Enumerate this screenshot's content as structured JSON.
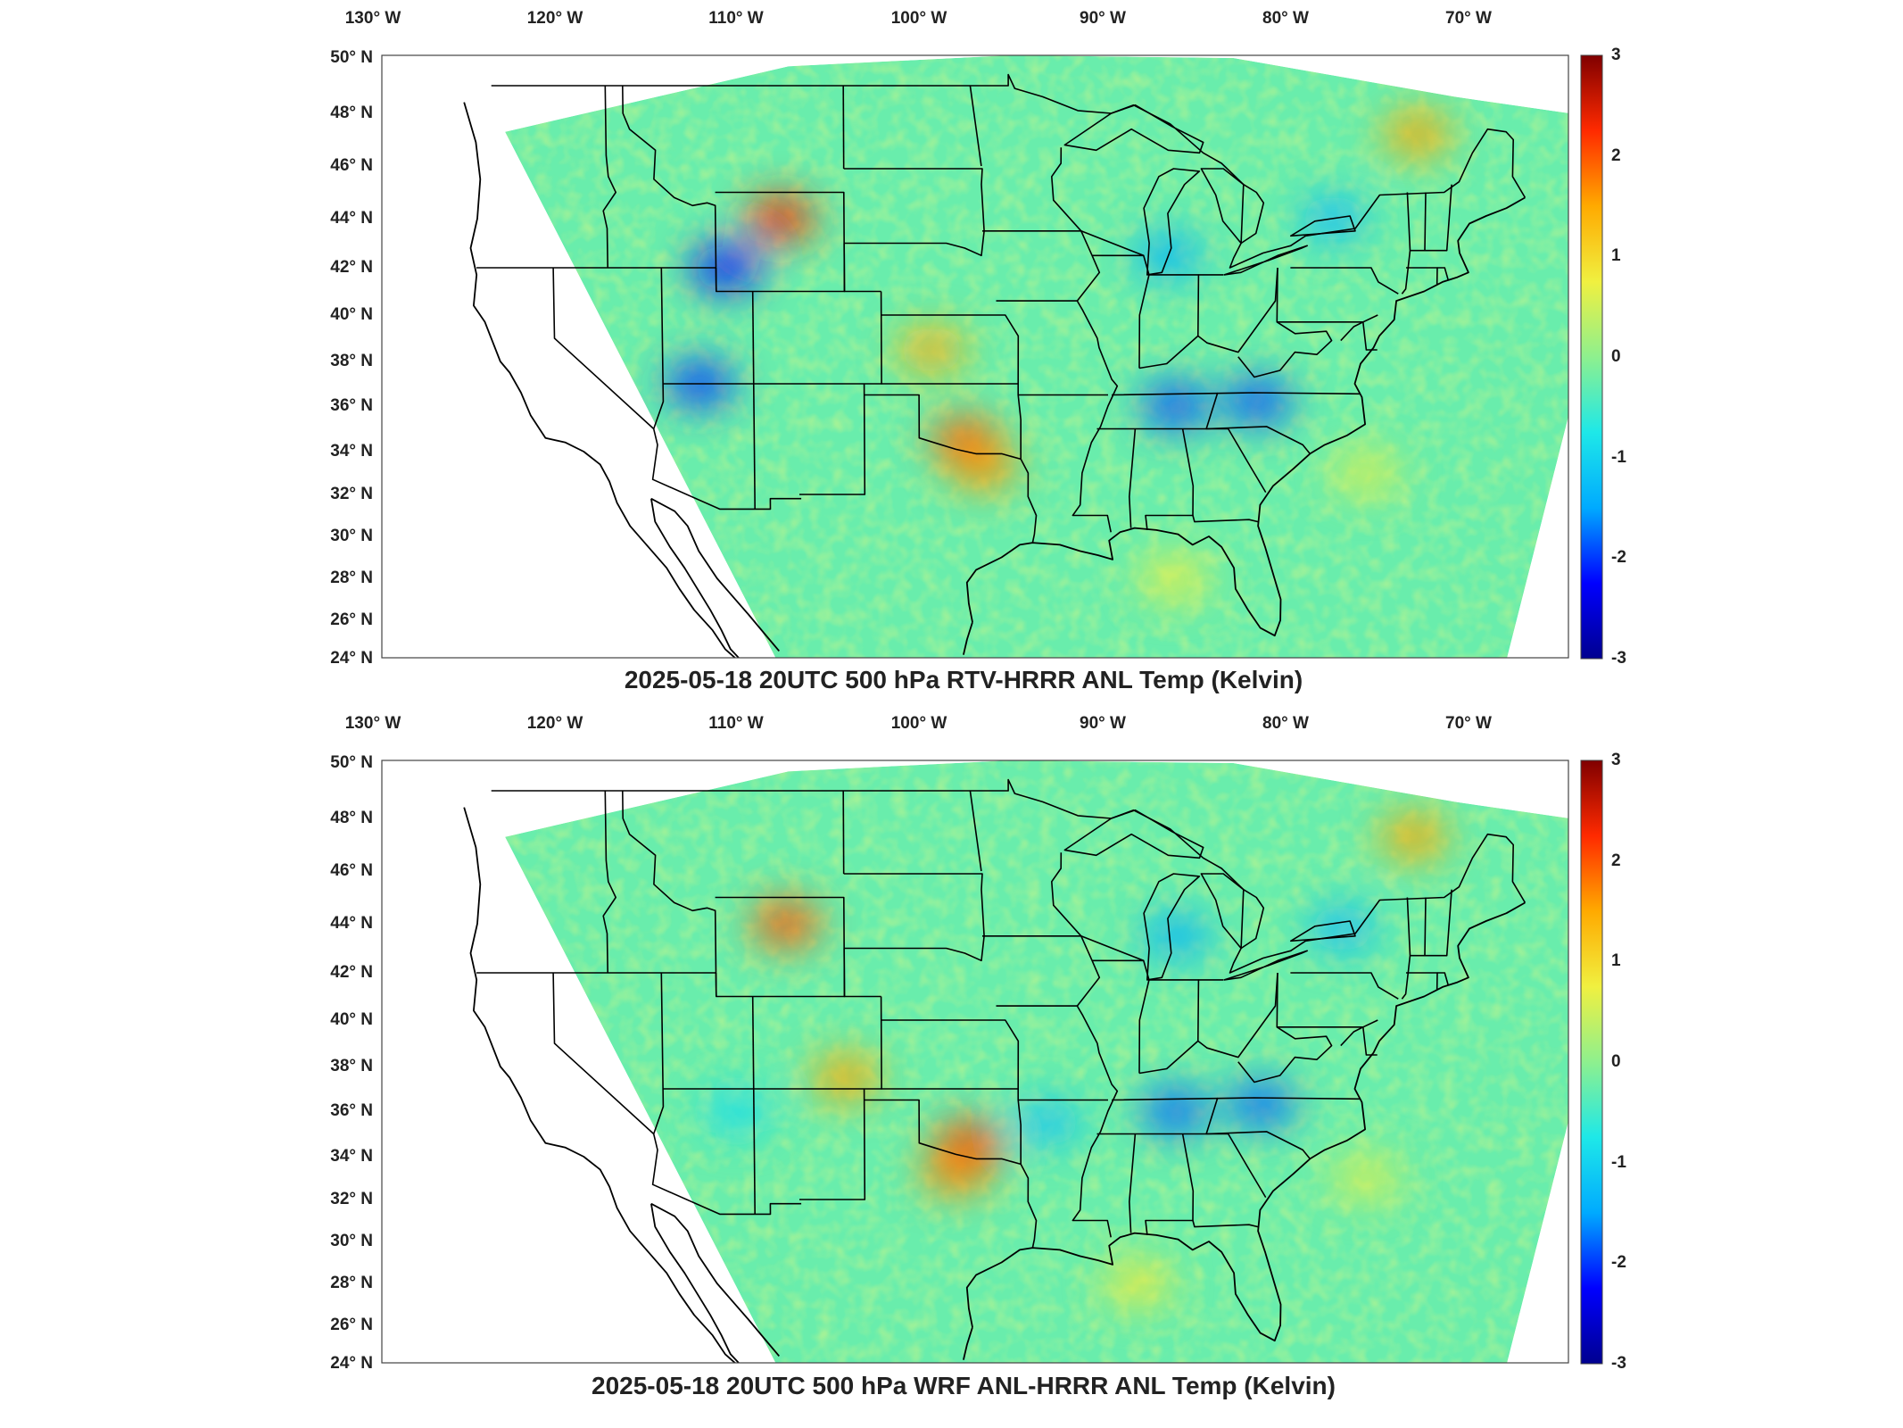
{
  "colormap": {
    "name": "jet",
    "stops": [
      "#00008f",
      "#0000ff",
      "#00aaff",
      "#1ee8e8",
      "#8ef08e",
      "#f0f040",
      "#ffaa00",
      "#ff2a00",
      "#800000"
    ],
    "range": [
      -3,
      3
    ]
  },
  "map": {
    "lon_ticks": [
      "130° W",
      "120° W",
      "110° W",
      "100° W",
      "90° W",
      "80° W",
      "70° W"
    ],
    "lat_ticks": [
      "50° N",
      "48° N",
      "46° N",
      "44° N",
      "42° N",
      "40° N",
      "38° N",
      "36° N",
      "34° N",
      "32° N",
      "30° N",
      "28° N",
      "26° N",
      "24° N"
    ],
    "colorbar_ticks": [
      "3",
      "2",
      "1",
      "0",
      "-1",
      "-2",
      "-3"
    ]
  },
  "panels": [
    {
      "title": "2025-05-18 20UTC 500 hPa RTV-HRRR ANL Temp (Kelvin)",
      "hotspots": [
        {
          "lon": -107.5,
          "lat": 44.0,
          "value": 2.3
        },
        {
          "lon": -97.5,
          "lat": 34.5,
          "value": 2.0
        },
        {
          "lon": -96.5,
          "lat": 33.3,
          "value": 1.6
        },
        {
          "lon": -99.3,
          "lat": 38.5,
          "value": 1.4
        },
        {
          "lon": -73.0,
          "lat": 47.2,
          "value": 1.5
        },
        {
          "lon": -110.5,
          "lat": 42.0,
          "value": -2.2
        },
        {
          "lon": -86.0,
          "lat": 36.0,
          "value": -1.9
        },
        {
          "lon": -81.5,
          "lat": 36.2,
          "value": -1.9
        },
        {
          "lon": -112.0,
          "lat": 37.0,
          "value": -2.0
        },
        {
          "lon": -77.5,
          "lat": 44.0,
          "value": -1.3
        },
        {
          "lon": -86.5,
          "lat": 42.5,
          "value": -1.4
        },
        {
          "lon": -75.5,
          "lat": 33.0,
          "value": 0.6
        },
        {
          "lon": -86.0,
          "lat": 28.0,
          "value": 0.7
        }
      ]
    },
    {
      "title": "2025-05-18 20UTC 500 hPa WRF ANL-HRRR ANL Temp (Kelvin)",
      "hotspots": [
        {
          "lon": -107.2,
          "lat": 44.0,
          "value": 2.0
        },
        {
          "lon": -97.3,
          "lat": 34.5,
          "value": 2.3
        },
        {
          "lon": -98.0,
          "lat": 33.3,
          "value": 1.7
        },
        {
          "lon": -104.0,
          "lat": 37.5,
          "value": 1.5
        },
        {
          "lon": -73.2,
          "lat": 47.3,
          "value": 1.5
        },
        {
          "lon": -86.0,
          "lat": 36.0,
          "value": -1.8
        },
        {
          "lon": -81.3,
          "lat": 36.3,
          "value": -1.8
        },
        {
          "lon": -77.0,
          "lat": 43.8,
          "value": -1.3
        },
        {
          "lon": -86.0,
          "lat": 43.5,
          "value": -1.4
        },
        {
          "lon": -93.0,
          "lat": 35.5,
          "value": -1.2
        },
        {
          "lon": -110.0,
          "lat": 36.0,
          "value": -0.9
        },
        {
          "lon": -75.5,
          "lat": 33.0,
          "value": 0.6
        },
        {
          "lon": -88.0,
          "lat": 28.0,
          "value": 0.8
        }
      ]
    }
  ]
}
